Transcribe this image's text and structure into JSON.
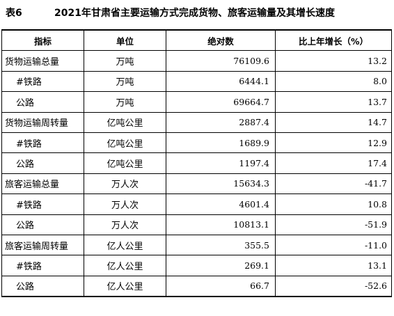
{
  "title": {
    "number": "表6",
    "text": "2021年甘肃省主要运输方式完成货物、旅客运输量及其增长速度"
  },
  "table": {
    "headers": [
      "指标",
      "单位",
      "绝对数",
      "比上年增长（%）"
    ],
    "rows": [
      {
        "indicator": "货物运输总量",
        "unit": "万吨",
        "absolute": "76109.6",
        "growth": "13.2",
        "sub": false
      },
      {
        "indicator": "#铁路",
        "unit": "万吨",
        "absolute": "6444.1",
        "growth": "8.0",
        "sub": true
      },
      {
        "indicator": "公路",
        "unit": "万吨",
        "absolute": "69664.7",
        "growth": "13.7",
        "sub": true
      },
      {
        "indicator": "货物运输周转量",
        "unit": "亿吨公里",
        "absolute": "2887.4",
        "growth": "14.7",
        "sub": false
      },
      {
        "indicator": "#铁路",
        "unit": "亿吨公里",
        "absolute": "1689.9",
        "growth": "12.9",
        "sub": true
      },
      {
        "indicator": "公路",
        "unit": "亿吨公里",
        "absolute": "1197.4",
        "growth": "17.4",
        "sub": true
      },
      {
        "indicator": "旅客运输总量",
        "unit": "万人次",
        "absolute": "15634.3",
        "growth": "-41.7",
        "sub": false
      },
      {
        "indicator": "#铁路",
        "unit": "万人次",
        "absolute": "4601.4",
        "growth": "10.8",
        "sub": true
      },
      {
        "indicator": "公路",
        "unit": "万人次",
        "absolute": "10813.1",
        "growth": "-51.9",
        "sub": true
      },
      {
        "indicator": "旅客运输周转量",
        "unit": "亿人公里",
        "absolute": "355.5",
        "growth": "-11.0",
        "sub": false
      },
      {
        "indicator": "#铁路",
        "unit": "亿人公里",
        "absolute": "269.1",
        "growth": "13.1",
        "sub": true
      },
      {
        "indicator": "公路",
        "unit": "亿人公里",
        "absolute": "66.7",
        "growth": "-52.6",
        "sub": true
      }
    ]
  }
}
